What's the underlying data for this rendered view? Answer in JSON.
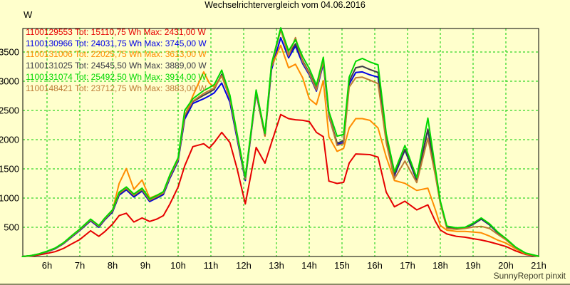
{
  "footer": "SunnyReport pinxit",
  "colors": {
    "background": "#ffffcc",
    "grid": "#00cc00",
    "axis": "#000000",
    "footer_text": "#3c3c28"
  },
  "chart_data": {
    "type": "line",
    "title": "Wechselrichtervergleich vom 04.06.2016",
    "y_unit": "W",
    "xlabel": "",
    "ylabel": "W",
    "grid": true,
    "legend_position": "top-left",
    "xlim_hours": [
      5.25,
      21
    ],
    "ylim": [
      0,
      3900
    ],
    "x_ticks": [
      "6h",
      "7h",
      "8h",
      "9h",
      "10h",
      "11h",
      "12h",
      "13h",
      "14h",
      "15h",
      "16h",
      "17h",
      "18h",
      "19h",
      "20h",
      "21h"
    ],
    "x_tick_hours": [
      6,
      7,
      8,
      9,
      10,
      11,
      12,
      13,
      14,
      15,
      16,
      17,
      18,
      19,
      20,
      21
    ],
    "y_ticks": [
      500,
      1000,
      1500,
      2000,
      2500,
      3000,
      3500
    ],
    "x_hours": [
      5.25,
      5.5,
      5.75,
      6,
      6.25,
      6.5,
      6.75,
      7,
      7.33,
      7.58,
      7.75,
      8,
      8.2,
      8.42,
      8.65,
      8.9,
      9.13,
      9.35,
      9.55,
      9.75,
      10,
      10.2,
      10.45,
      10.78,
      10.95,
      11.1,
      11.33,
      11.58,
      11.8,
      12.05,
      12.38,
      12.65,
      12.85,
      13.13,
      13.37,
      13.58,
      13.8,
      14,
      14.22,
      14.43,
      14.6,
      14.85,
      15.05,
      15.22,
      15.42,
      15.62,
      15.85,
      16.1,
      16.35,
      16.6,
      16.92,
      17.28,
      17.62,
      17.85,
      18,
      18.2,
      18.5,
      18.75,
      19,
      19.25,
      19.5,
      19.75,
      20,
      20.3,
      20.6,
      21
    ],
    "series": [
      {
        "name": "1100129553",
        "legend": "1100129553 Tot: 15110,75 Wh Max: 2431,00 W",
        "total_wh": "15110,75",
        "max_w": "2431,00",
        "color": "#e60000",
        "values": [
          0,
          9,
          27,
          52,
          83,
          138,
          215,
          290,
          440,
          345,
          420,
          555,
          700,
          740,
          590,
          660,
          600,
          640,
          700,
          900,
          1190,
          1550,
          1880,
          1930,
          1855,
          1950,
          2124,
          1950,
          1500,
          900,
          1867,
          1597,
          1950,
          2431,
          2360,
          2340,
          2330,
          2310,
          2125,
          2050,
          1290,
          1250,
          1270,
          1600,
          1755,
          1750,
          1744,
          1700,
          1100,
          850,
          946,
          798,
          884,
          600,
          454,
          385,
          344,
          330,
          305,
          282,
          250,
          212,
          172,
          95,
          35,
          3
        ]
      },
      {
        "name": "1100130966",
        "legend": "1100130966 Tot: 24031,75 Wh Max: 3745,00 W",
        "total_wh": "24031,75",
        "max_w": "3745,00",
        "color": "#0000e6",
        "values": [
          0,
          13,
          40,
          82,
          132,
          218,
          330,
          445,
          610,
          500,
          620,
          762,
          1050,
          1140,
          1020,
          1120,
          940,
          1000,
          1060,
          1340,
          1630,
          2350,
          2620,
          2700,
          2750,
          2800,
          2970,
          2640,
          2010,
          1300,
          2790,
          2060,
          3200,
          3745,
          3400,
          3600,
          3300,
          3110,
          2830,
          3300,
          2400,
          1915,
          1950,
          2950,
          3150,
          3160,
          3110,
          3070,
          2000,
          1380,
          1820,
          1300,
          2170,
          1430,
          920,
          500,
          475,
          485,
          550,
          640,
          540,
          405,
          295,
          150,
          52,
          4
        ]
      },
      {
        "name": "1100131006",
        "legend": "1100131006 Tot: 22025,75 Wh Max: 3613,00 W",
        "total_wh": "22025,75",
        "max_w": "3613,00",
        "color": "#ff8c00",
        "values": [
          0,
          14,
          42,
          86,
          138,
          224,
          340,
          455,
          625,
          515,
          635,
          790,
          1250,
          1505,
          1150,
          1310,
          1000,
          1050,
          1100,
          1380,
          1670,
          2400,
          2750,
          3160,
          2970,
          2900,
          3095,
          2700,
          2050,
          1330,
          2810,
          2060,
          3250,
          3613,
          3230,
          3290,
          3060,
          2700,
          2600,
          3010,
          2050,
          1800,
          1850,
          2200,
          2360,
          2360,
          2330,
          2200,
          1700,
          1300,
          1253,
          1130,
          1170,
          800,
          530,
          450,
          430,
          430,
          420,
          405,
          350,
          280,
          230,
          130,
          45,
          3
        ]
      },
      {
        "name": "1100131025",
        "legend": "1100131025 Tot: 24545,50 Wh Max: 3889,00 W",
        "total_wh": "24545,50",
        "max_w": "3889,00",
        "color": "#3c3c46",
        "values": [
          0,
          14,
          42,
          85,
          138,
          225,
          340,
          455,
          620,
          512,
          630,
          775,
          1070,
          1160,
          1040,
          1140,
          958,
          1015,
          1080,
          1360,
          1650,
          2400,
          2650,
          2760,
          2810,
          2860,
          3120,
          2700,
          2050,
          1320,
          2820,
          2080,
          3260,
          3889,
          3450,
          3640,
          3350,
          3150,
          2870,
          3340,
          2430,
          1940,
          1980,
          3000,
          3230,
          3255,
          3200,
          3150,
          2030,
          1400,
          1830,
          1310,
          2180,
          1450,
          930,
          505,
          480,
          490,
          555,
          645,
          545,
          410,
          300,
          155,
          55,
          5
        ]
      },
      {
        "name": "1100131074",
        "legend": "1100131074 Tot: 25492,50 Wh Max: 3914,00 W",
        "total_wh": "25492,50",
        "max_w": "3914,00",
        "color": "#00d800",
        "values": [
          0,
          15,
          45,
          90,
          145,
          235,
          355,
          470,
          640,
          530,
          650,
          800,
          1100,
          1190,
          1070,
          1170,
          985,
          1045,
          1110,
          1400,
          1690,
          2500,
          2700,
          2840,
          2890,
          2940,
          3190,
          2760,
          2100,
          1360,
          2850,
          2110,
          3300,
          3914,
          3520,
          3710,
          3420,
          3220,
          2930,
          3410,
          2480,
          2060,
          2090,
          3070,
          3340,
          3390,
          3330,
          3280,
          2100,
          1450,
          1900,
          1350,
          2370,
          1500,
          950,
          520,
          490,
          500,
          570,
          660,
          560,
          420,
          310,
          160,
          60,
          5
        ]
      },
      {
        "name": "1100148421",
        "legend": "1100148421 Tot: 23712,75 Wh Max: 3883,00 W",
        "total_wh": "23712,75",
        "max_w": "3883,00",
        "color": "#bd7b35",
        "values": [
          0,
          14,
          43,
          88,
          140,
          228,
          345,
          460,
          628,
          518,
          638,
          785,
          1080,
          1170,
          1050,
          1150,
          965,
          1025,
          1090,
          1370,
          1660,
          2420,
          2660,
          2790,
          2840,
          2880,
          3095,
          2710,
          2060,
          1330,
          2830,
          2090,
          3280,
          3883,
          3430,
          3746,
          3330,
          3130,
          2850,
          3340,
          2420,
          1900,
          1930,
          2900,
          3060,
          3070,
          3020,
          2960,
          1950,
          1330,
          1634,
          1265,
          2027,
          1380,
          900,
          480,
          465,
          480,
          505,
          516,
          480,
          380,
          285,
          145,
          50,
          4
        ]
      }
    ]
  }
}
